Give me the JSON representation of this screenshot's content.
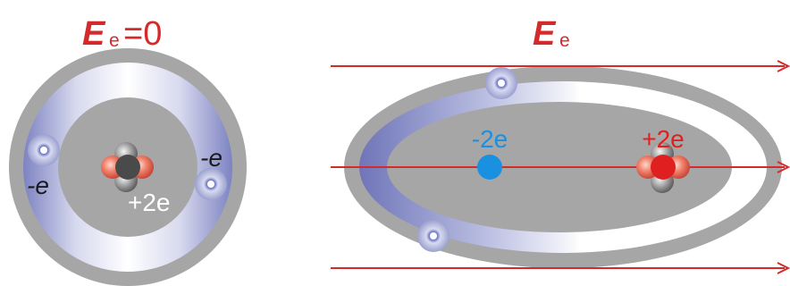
{
  "left_panel": {
    "title_symbol": "E",
    "title_subscript": "e",
    "title_suffix": "=0",
    "charge_left_electron": "-e",
    "charge_right_electron": "-e",
    "charge_nucleus": "+2e"
  },
  "right_panel": {
    "title_symbol": "E",
    "title_subscript": "e",
    "charge_negative_centroid": "-2e",
    "charge_positive_centroid": "+2e"
  },
  "colors": {
    "title": "#d42a2a",
    "field_lines": "#d42a2a",
    "negative_centroid": "#1a90e0",
    "positive_centroid": "#e02020",
    "electron_cloud": "#8a8fc8",
    "outer_shell": "#a6a6a6"
  },
  "icons": [
    "electron-icon",
    "nucleus-icon",
    "field-arrow-icon"
  ]
}
